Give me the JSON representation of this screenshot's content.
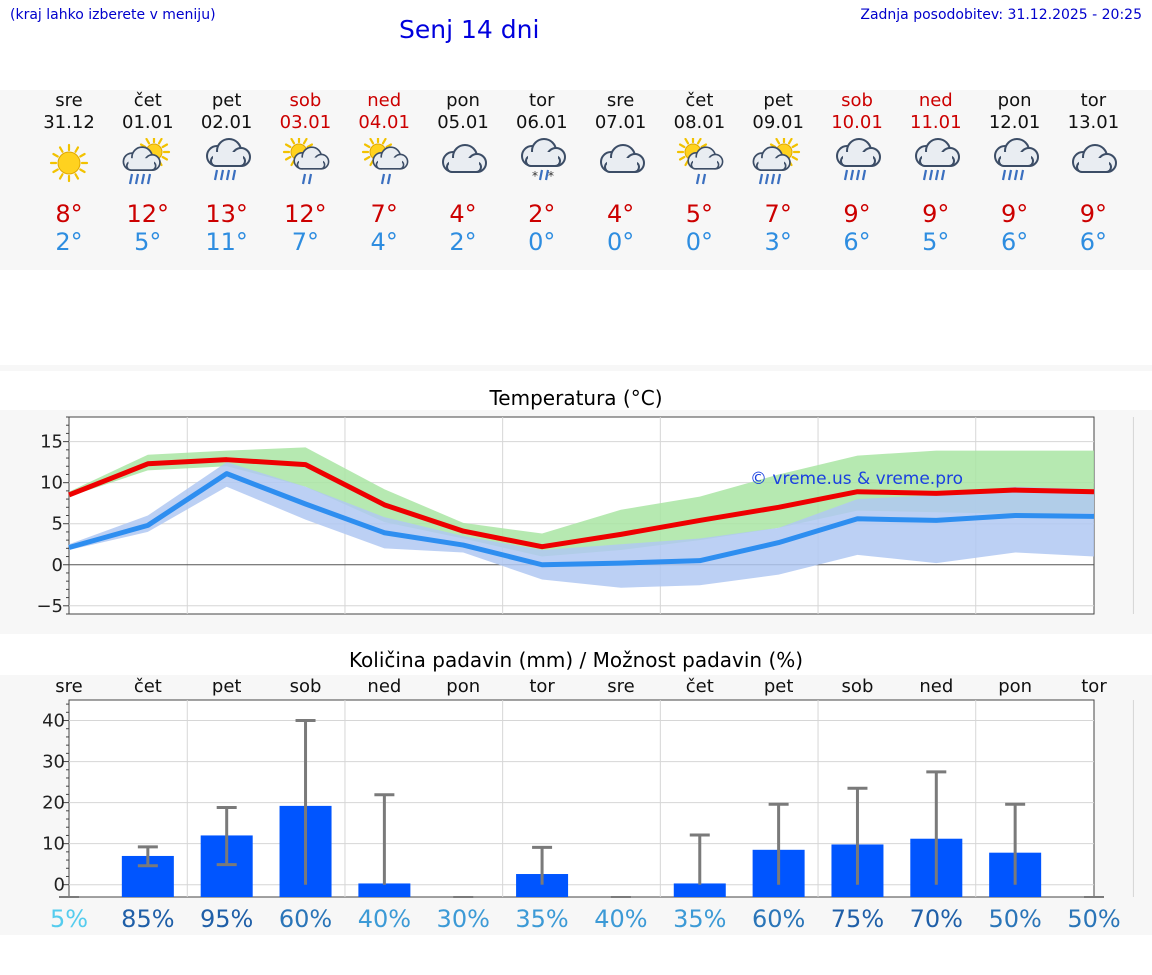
{
  "header": {
    "menu_hint": "(kraj lahko izberete v meniju)",
    "title": "Senj 14 dni",
    "updated": "Zadnja posodobitev: 31.12.2025 - 20:25"
  },
  "forecast": [
    {
      "day": "sre",
      "date": "31.12",
      "icon": "sun-icon",
      "hi": "8°",
      "lo": "2°",
      "weekend": false
    },
    {
      "day": "čet",
      "date": "01.01",
      "icon": "sun-cloud-rain-icon",
      "hi": "12°",
      "lo": "5°",
      "weekend": false
    },
    {
      "day": "pet",
      "date": "02.01",
      "icon": "cloud-rain-icon",
      "hi": "13°",
      "lo": "11°",
      "weekend": false
    },
    {
      "day": "sob",
      "date": "03.01",
      "icon": "sun-cloud-light-rain-icon",
      "hi": "12°",
      "lo": "7°",
      "weekend": true
    },
    {
      "day": "ned",
      "date": "04.01",
      "icon": "sun-cloud-light-rain-icon",
      "hi": "7°",
      "lo": "4°",
      "weekend": true
    },
    {
      "day": "pon",
      "date": "05.01",
      "icon": "cloud-icon",
      "hi": "4°",
      "lo": "2°",
      "weekend": false
    },
    {
      "day": "tor",
      "date": "06.01",
      "icon": "cloud-sleet-icon",
      "hi": "2°",
      "lo": "0°",
      "weekend": false
    },
    {
      "day": "sre",
      "date": "07.01",
      "icon": "cloud-icon",
      "hi": "4°",
      "lo": "0°",
      "weekend": false
    },
    {
      "day": "čet",
      "date": "08.01",
      "icon": "sun-cloud-light-rain-icon",
      "hi": "5°",
      "lo": "0°",
      "weekend": false
    },
    {
      "day": "pet",
      "date": "09.01",
      "icon": "sun-cloud-rain-icon",
      "hi": "7°",
      "lo": "3°",
      "weekend": false
    },
    {
      "day": "sob",
      "date": "10.01",
      "icon": "cloud-rain-icon",
      "hi": "9°",
      "lo": "6°",
      "weekend": true
    },
    {
      "day": "ned",
      "date": "11.01",
      "icon": "cloud-rain-icon",
      "hi": "9°",
      "lo": "5°",
      "weekend": true
    },
    {
      "day": "pon",
      "date": "12.01",
      "icon": "cloud-rain-icon",
      "hi": "9°",
      "lo": "6°",
      "weekend": false
    },
    {
      "day": "tor",
      "date": "13.01",
      "icon": "cloud-icon",
      "hi": "9°",
      "lo": "6°",
      "weekend": false
    }
  ],
  "chart_data": [
    {
      "type": "line",
      "title": "Temperatura (°C)",
      "watermark": "© vreme.us & vreme.pro",
      "ylim": [
        -6,
        18
      ],
      "yticks": [
        -5,
        0,
        5,
        10,
        15
      ],
      "x": [
        0,
        1,
        2,
        3,
        4,
        5,
        6,
        7,
        8,
        9,
        10,
        11,
        12,
        13
      ],
      "series": [
        {
          "name": "max",
          "color": "#ee0000",
          "values": [
            8.5,
            12.3,
            12.8,
            12.2,
            7.3,
            4.1,
            2.2,
            3.7,
            5.4,
            7.0,
            8.9,
            8.7,
            9.1,
            8.9
          ]
        },
        {
          "name": "min",
          "color": "#2e8ef0",
          "values": [
            2.1,
            4.8,
            11.1,
            7.4,
            3.9,
            2.4,
            0.0,
            0.2,
            0.5,
            2.7,
            5.6,
            5.4,
            6.0,
            5.9
          ]
        }
      ],
      "bands": [
        {
          "name": "max-range",
          "color": "#a9e5a3",
          "lower": [
            8.3,
            11.5,
            12.0,
            9.5,
            5.2,
            3.2,
            1.0,
            1.8,
            3.0,
            4.5,
            6.6,
            6.4,
            6.2,
            6.3
          ],
          "upper": [
            8.9,
            13.4,
            13.9,
            14.3,
            9.2,
            5.1,
            3.8,
            6.7,
            8.3,
            11.0,
            13.3,
            13.9,
            13.9,
            13.9
          ]
        },
        {
          "name": "min-range",
          "color": "#b0c8f2",
          "lower": [
            1.8,
            4.0,
            9.5,
            5.5,
            2.0,
            1.5,
            -1.8,
            -2.8,
            -2.5,
            -1.2,
            1.2,
            0.2,
            1.5,
            1.0
          ],
          "upper": [
            2.5,
            6.0,
            12.5,
            9.5,
            5.8,
            3.5,
            1.8,
            2.5,
            3.2,
            4.5,
            8.0,
            8.5,
            9.5,
            9.2
          ]
        }
      ]
    },
    {
      "type": "bar",
      "title": "Količina padavin (mm) / Možnost padavin (%)",
      "categories": [
        "sre",
        "čet",
        "pet",
        "sob",
        "ned",
        "pon",
        "tor",
        "sre",
        "čet",
        "pet",
        "sob",
        "ned",
        "pon",
        "tor"
      ],
      "ylim": [
        -3,
        45
      ],
      "yticks": [
        0,
        10,
        20,
        30,
        40
      ],
      "bar_color": "#0055ff",
      "values": [
        0.0,
        7.0,
        12.0,
        19.2,
        0.3,
        0.0,
        2.6,
        0.0,
        0.3,
        8.5,
        9.8,
        11.2,
        7.8,
        0.0
      ],
      "error_low": [
        0.0,
        4.6,
        4.9,
        0.0,
        0.0,
        0.0,
        0.0,
        0.0,
        0.0,
        0.0,
        0.0,
        0.0,
        0.0,
        0.0
      ],
      "error_high": [
        0.0,
        9.2,
        18.8,
        40.0,
        21.9,
        0.0,
        9.1,
        0.0,
        12.1,
        19.6,
        23.5,
        27.5,
        19.6,
        0.0
      ],
      "probability": [
        "5%",
        "85%",
        "95%",
        "60%",
        "40%",
        "30%",
        "35%",
        "40%",
        "35%",
        "60%",
        "75%",
        "70%",
        "50%",
        "50%"
      ],
      "probability_colors": [
        "#55ccee",
        "#1f5fa8",
        "#1f5fa8",
        "#2a75b8",
        "#3c9ad6",
        "#3c9ad6",
        "#3c9ad6",
        "#3c9ad6",
        "#3c9ad6",
        "#2a75b8",
        "#1f5fa8",
        "#1f5fa8",
        "#2a75b8",
        "#2a75b8"
      ]
    }
  ]
}
